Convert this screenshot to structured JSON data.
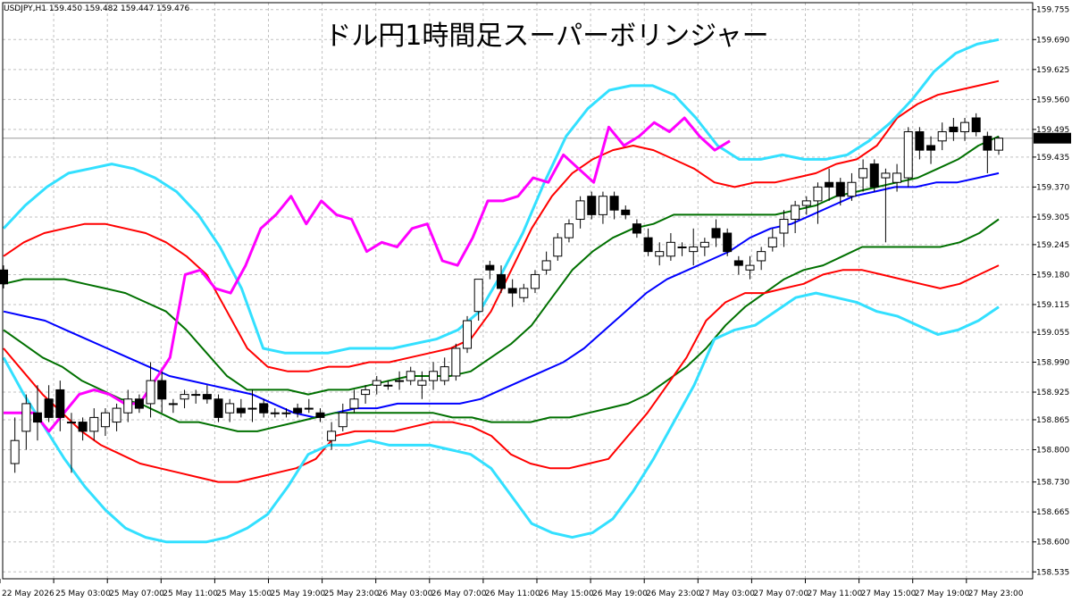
{
  "chart_data": {
    "type": "line",
    "title": "ドル円1時間足スーパーボリンジャー",
    "symbol_info": "USDJPY,H1  159.450 159.482 159.447 159.476",
    "current_price_label": "159.476",
    "current_price": 159.476,
    "ylim": [
      158.52,
      159.77
    ],
    "y_ticks": [
      "159.755",
      "159.690",
      "159.625",
      "159.560",
      "159.495",
      "159.435",
      "159.370",
      "159.305",
      "159.245",
      "159.180",
      "159.115",
      "159.055",
      "158.990",
      "158.925",
      "158.865",
      "158.800",
      "158.730",
      "158.665",
      "158.600",
      "158.535"
    ],
    "x_ticks": [
      "22 May 2026",
      "25 May 03:00",
      "25 May 07:00",
      "25 May 11:00",
      "25 May 15:00",
      "25 May 19:00",
      "25 May 23:00",
      "26 May 03:00",
      "26 May 07:00",
      "26 May 11:00",
      "26 May 15:00",
      "26 May 19:00",
      "26 May 23:00",
      "27 May 03:00",
      "27 May 07:00",
      "27 May 11:00",
      "27 May 15:00",
      "27 May 19:00",
      "27 May 23:00"
    ],
    "grid": true,
    "colors": {
      "background": "#ffffff",
      "grid": "#c0c0c0",
      "axis": "#000000",
      "bull_candle": "#ffffff",
      "bear_candle": "#000000",
      "middle": "#0000ff",
      "sigma1": "#007000",
      "sigma2": "#ff0000",
      "sigma3": "#33e0ff",
      "lagging": "#ff00ff"
    },
    "candles": [
      [
        159.19,
        159.2,
        159.15,
        159.16
      ],
      [
        158.77,
        158.87,
        158.75,
        158.82
      ],
      [
        158.84,
        158.92,
        158.8,
        158.9
      ],
      [
        158.88,
        158.94,
        158.82,
        158.86
      ],
      [
        158.91,
        158.94,
        158.86,
        158.87
      ],
      [
        158.93,
        158.95,
        158.84,
        158.87
      ],
      [
        158.86,
        158.88,
        158.75,
        158.86
      ],
      [
        158.86,
        158.87,
        158.82,
        158.84
      ],
      [
        158.84,
        158.89,
        158.82,
        158.87
      ],
      [
        158.85,
        158.89,
        158.83,
        158.88
      ],
      [
        158.86,
        158.9,
        158.84,
        158.89
      ],
      [
        158.88,
        158.93,
        158.86,
        158.91
      ],
      [
        158.91,
        158.92,
        158.88,
        158.89
      ],
      [
        158.9,
        158.99,
        158.87,
        158.95
      ],
      [
        158.95,
        158.97,
        158.88,
        158.91
      ],
      [
        158.9,
        158.91,
        158.88,
        158.9
      ],
      [
        158.91,
        158.93,
        158.89,
        158.92
      ],
      [
        158.92,
        158.93,
        158.9,
        158.92
      ],
      [
        158.92,
        158.94,
        158.9,
        158.91
      ],
      [
        158.91,
        158.92,
        158.86,
        158.87
      ],
      [
        158.88,
        158.91,
        158.86,
        158.9
      ],
      [
        158.89,
        158.91,
        158.87,
        158.88
      ],
      [
        158.89,
        158.93,
        158.86,
        158.89
      ],
      [
        158.9,
        158.91,
        158.87,
        158.88
      ],
      [
        158.88,
        158.89,
        158.87,
        158.88
      ],
      [
        158.88,
        158.89,
        158.87,
        158.88
      ],
      [
        158.89,
        158.9,
        158.87,
        158.88
      ],
      [
        158.89,
        158.91,
        158.88,
        158.89
      ],
      [
        158.88,
        158.89,
        158.86,
        158.87
      ],
      [
        158.82,
        158.86,
        158.8,
        158.84
      ],
      [
        158.85,
        158.9,
        158.84,
        158.88
      ],
      [
        158.89,
        158.93,
        158.88,
        158.91
      ],
      [
        158.92,
        158.94,
        158.9,
        158.93
      ],
      [
        158.94,
        158.96,
        158.92,
        158.95
      ],
      [
        158.94,
        158.95,
        158.93,
        158.94
      ],
      [
        158.95,
        158.97,
        158.93,
        158.95
      ],
      [
        158.95,
        158.98,
        158.94,
        158.97
      ],
      [
        158.94,
        158.97,
        158.91,
        158.95
      ],
      [
        158.95,
        158.99,
        158.93,
        158.97
      ],
      [
        158.95,
        159.0,
        158.94,
        158.98
      ],
      [
        158.96,
        159.03,
        158.95,
        159.02
      ],
      [
        159.02,
        159.09,
        159.01,
        159.08
      ],
      [
        159.1,
        159.17,
        159.08,
        159.17
      ],
      [
        159.2,
        159.21,
        159.17,
        159.19
      ],
      [
        159.18,
        159.2,
        159.14,
        159.15
      ],
      [
        159.15,
        159.17,
        159.11,
        159.14
      ],
      [
        159.13,
        159.16,
        159.12,
        159.15
      ],
      [
        159.15,
        159.19,
        159.14,
        159.18
      ],
      [
        159.19,
        159.23,
        159.18,
        159.21
      ],
      [
        159.22,
        159.27,
        159.21,
        159.26
      ],
      [
        159.26,
        159.3,
        159.25,
        159.29
      ],
      [
        159.3,
        159.35,
        159.28,
        159.34
      ],
      [
        159.35,
        159.36,
        159.3,
        159.31
      ],
      [
        159.31,
        159.36,
        159.29,
        159.35
      ],
      [
        159.35,
        159.36,
        159.3,
        159.32
      ],
      [
        159.32,
        159.33,
        159.3,
        159.31
      ],
      [
        159.29,
        159.3,
        159.26,
        159.27
      ],
      [
        159.26,
        159.28,
        159.22,
        159.23
      ],
      [
        159.22,
        159.25,
        159.2,
        159.23
      ],
      [
        159.22,
        159.27,
        159.21,
        159.25
      ],
      [
        159.24,
        159.25,
        159.22,
        159.24
      ],
      [
        159.23,
        159.28,
        159.2,
        159.24
      ],
      [
        159.24,
        159.26,
        159.22,
        159.25
      ],
      [
        159.28,
        159.3,
        159.24,
        159.26
      ],
      [
        159.27,
        159.28,
        159.22,
        159.23
      ],
      [
        159.21,
        159.22,
        159.18,
        159.2
      ],
      [
        159.19,
        159.22,
        159.17,
        159.2
      ],
      [
        159.21,
        159.24,
        159.19,
        159.23
      ],
      [
        159.24,
        159.28,
        159.23,
        159.26
      ],
      [
        159.27,
        159.32,
        159.24,
        159.3
      ],
      [
        159.3,
        159.34,
        159.27,
        159.33
      ],
      [
        159.33,
        159.35,
        159.31,
        159.34
      ],
      [
        159.34,
        159.38,
        159.29,
        159.37
      ],
      [
        159.38,
        159.41,
        159.34,
        159.37
      ],
      [
        159.38,
        159.39,
        159.33,
        159.35
      ],
      [
        159.35,
        159.4,
        159.34,
        159.38
      ],
      [
        159.39,
        159.43,
        159.36,
        159.41
      ],
      [
        159.42,
        159.43,
        159.36,
        159.37
      ],
      [
        159.39,
        159.41,
        159.25,
        159.4
      ],
      [
        159.38,
        159.42,
        159.36,
        159.4
      ],
      [
        159.39,
        159.5,
        159.37,
        159.49
      ],
      [
        159.49,
        159.5,
        159.43,
        159.45
      ],
      [
        159.46,
        159.48,
        159.42,
        159.45
      ],
      [
        159.47,
        159.51,
        159.45,
        159.49
      ],
      [
        159.5,
        159.52,
        159.47,
        159.49
      ],
      [
        159.49,
        159.52,
        159.47,
        159.51
      ],
      [
        159.52,
        159.53,
        159.48,
        159.49
      ],
      [
        159.48,
        159.49,
        159.4,
        159.45
      ],
      [
        159.45,
        159.48,
        159.44,
        159.476
      ]
    ],
    "series": [
      {
        "key": "middle",
        "values": [
          159.1,
          159.09,
          159.08,
          159.06,
          159.04,
          159.02,
          159.0,
          158.98,
          158.96,
          158.95,
          158.94,
          158.93,
          158.92,
          158.9,
          158.88,
          158.87,
          158.88,
          158.89,
          158.89,
          158.9,
          158.9,
          158.9,
          158.9,
          158.91,
          158.93,
          158.95,
          158.97,
          158.99,
          159.02,
          159.06,
          159.1,
          159.14,
          159.17,
          159.19,
          159.21,
          159.23,
          159.26,
          159.28,
          159.29,
          159.31,
          159.33,
          159.35,
          159.36,
          159.37,
          159.37,
          159.38,
          159.38,
          159.39,
          159.4
        ]
      },
      {
        "key": "sigma1_up",
        "values": [
          159.16,
          159.17,
          159.17,
          159.17,
          159.16,
          159.15,
          159.14,
          159.12,
          159.1,
          159.06,
          159.01,
          158.96,
          158.93,
          158.93,
          158.93,
          158.92,
          158.93,
          158.93,
          158.94,
          158.95,
          158.96,
          158.96,
          158.96,
          158.97,
          159.0,
          159.03,
          159.07,
          159.13,
          159.19,
          159.23,
          159.26,
          159.28,
          159.29,
          159.31,
          159.31,
          159.31,
          159.31,
          159.31,
          159.31,
          159.32,
          159.33,
          159.35,
          159.36,
          159.37,
          159.38,
          159.39,
          159.41,
          159.43,
          159.46,
          159.48
        ]
      },
      {
        "key": "sigma1_dn",
        "values": [
          159.06,
          159.03,
          159.0,
          158.98,
          158.95,
          158.93,
          158.91,
          158.9,
          158.88,
          158.86,
          158.86,
          158.85,
          158.84,
          158.84,
          158.85,
          158.86,
          158.87,
          158.88,
          158.88,
          158.88,
          158.88,
          158.88,
          158.88,
          158.87,
          158.87,
          158.86,
          158.86,
          158.86,
          158.87,
          158.87,
          158.88,
          158.89,
          158.9,
          158.92,
          158.95,
          158.98,
          159.02,
          159.07,
          159.11,
          159.14,
          159.17,
          159.19,
          159.2,
          159.22,
          159.24,
          159.24,
          159.24,
          159.24,
          159.24,
          159.25,
          159.27,
          159.3
        ]
      },
      {
        "key": "sigma2_up",
        "values": [
          159.22,
          159.25,
          159.27,
          159.28,
          159.29,
          159.29,
          159.28,
          159.27,
          159.25,
          159.22,
          159.18,
          159.1,
          159.02,
          158.98,
          158.97,
          158.97,
          158.98,
          158.98,
          158.99,
          158.99,
          159.0,
          159.01,
          159.02,
          159.04,
          159.1,
          159.19,
          159.28,
          159.35,
          159.4,
          159.43,
          159.45,
          159.46,
          159.45,
          159.43,
          159.41,
          159.38,
          159.37,
          159.38,
          159.38,
          159.39,
          159.4,
          159.42,
          159.43,
          159.46,
          159.52,
          159.55,
          159.57,
          159.58,
          159.59,
          159.6
        ]
      },
      {
        "key": "sigma2_dn",
        "values": [
          159.02,
          158.97,
          158.92,
          158.88,
          158.84,
          158.81,
          158.79,
          158.77,
          158.76,
          158.75,
          158.74,
          158.73,
          158.73,
          158.74,
          158.75,
          158.76,
          158.78,
          158.83,
          158.84,
          158.84,
          158.84,
          158.85,
          158.86,
          158.86,
          158.85,
          158.83,
          158.79,
          158.77,
          158.76,
          158.76,
          158.77,
          158.78,
          158.83,
          158.88,
          158.94,
          159.0,
          159.08,
          159.12,
          159.14,
          159.14,
          159.15,
          159.16,
          159.18,
          159.19,
          159.19,
          159.18,
          159.17,
          159.16,
          159.15,
          159.16,
          159.18,
          159.2
        ]
      },
      {
        "key": "sigma3_up",
        "values": [
          159.28,
          159.33,
          159.37,
          159.4,
          159.41,
          159.42,
          159.41,
          159.39,
          159.36,
          159.31,
          159.24,
          159.15,
          159.02,
          159.01,
          159.01,
          159.01,
          159.02,
          159.02,
          159.02,
          159.03,
          159.04,
          159.06,
          159.1,
          159.18,
          159.27,
          159.38,
          159.48,
          159.54,
          159.58,
          159.59,
          159.59,
          159.57,
          159.52,
          159.46,
          159.43,
          159.43,
          159.44,
          159.43,
          159.43,
          159.44,
          159.47,
          159.51,
          159.56,
          159.62,
          159.66,
          159.68,
          159.69
        ]
      },
      {
        "key": "sigma3_dn",
        "values": [
          159.0,
          158.92,
          158.85,
          158.78,
          158.72,
          158.67,
          158.63,
          158.61,
          158.6,
          158.6,
          158.6,
          158.61,
          158.63,
          158.66,
          158.72,
          158.79,
          158.81,
          158.81,
          158.82,
          158.81,
          158.81,
          158.81,
          158.8,
          158.79,
          158.76,
          158.7,
          158.64,
          158.62,
          158.61,
          158.62,
          158.65,
          158.71,
          158.78,
          158.86,
          158.94,
          159.04,
          159.06,
          159.07,
          159.1,
          159.13,
          159.14,
          159.13,
          159.12,
          159.1,
          159.09,
          159.07,
          159.05,
          159.06,
          159.08,
          159.11
        ]
      },
      {
        "key": "lagging",
        "values": [
          158.88,
          158.88,
          158.88,
          158.84,
          158.88,
          158.92,
          158.93,
          158.92,
          158.9,
          158.9,
          158.95,
          159.0,
          159.18,
          159.19,
          159.15,
          159.14,
          159.2,
          159.28,
          159.31,
          159.35,
          159.29,
          159.34,
          159.31,
          159.3,
          159.23,
          159.25,
          159.24,
          159.28,
          159.29,
          159.21,
          159.2,
          159.26,
          159.34,
          159.34,
          159.35,
          159.39,
          159.38,
          159.44,
          159.41,
          159.38,
          159.5,
          159.46,
          159.48,
          159.51,
          159.49,
          159.52,
          159.48,
          159.45,
          159.47
        ]
      }
    ]
  }
}
